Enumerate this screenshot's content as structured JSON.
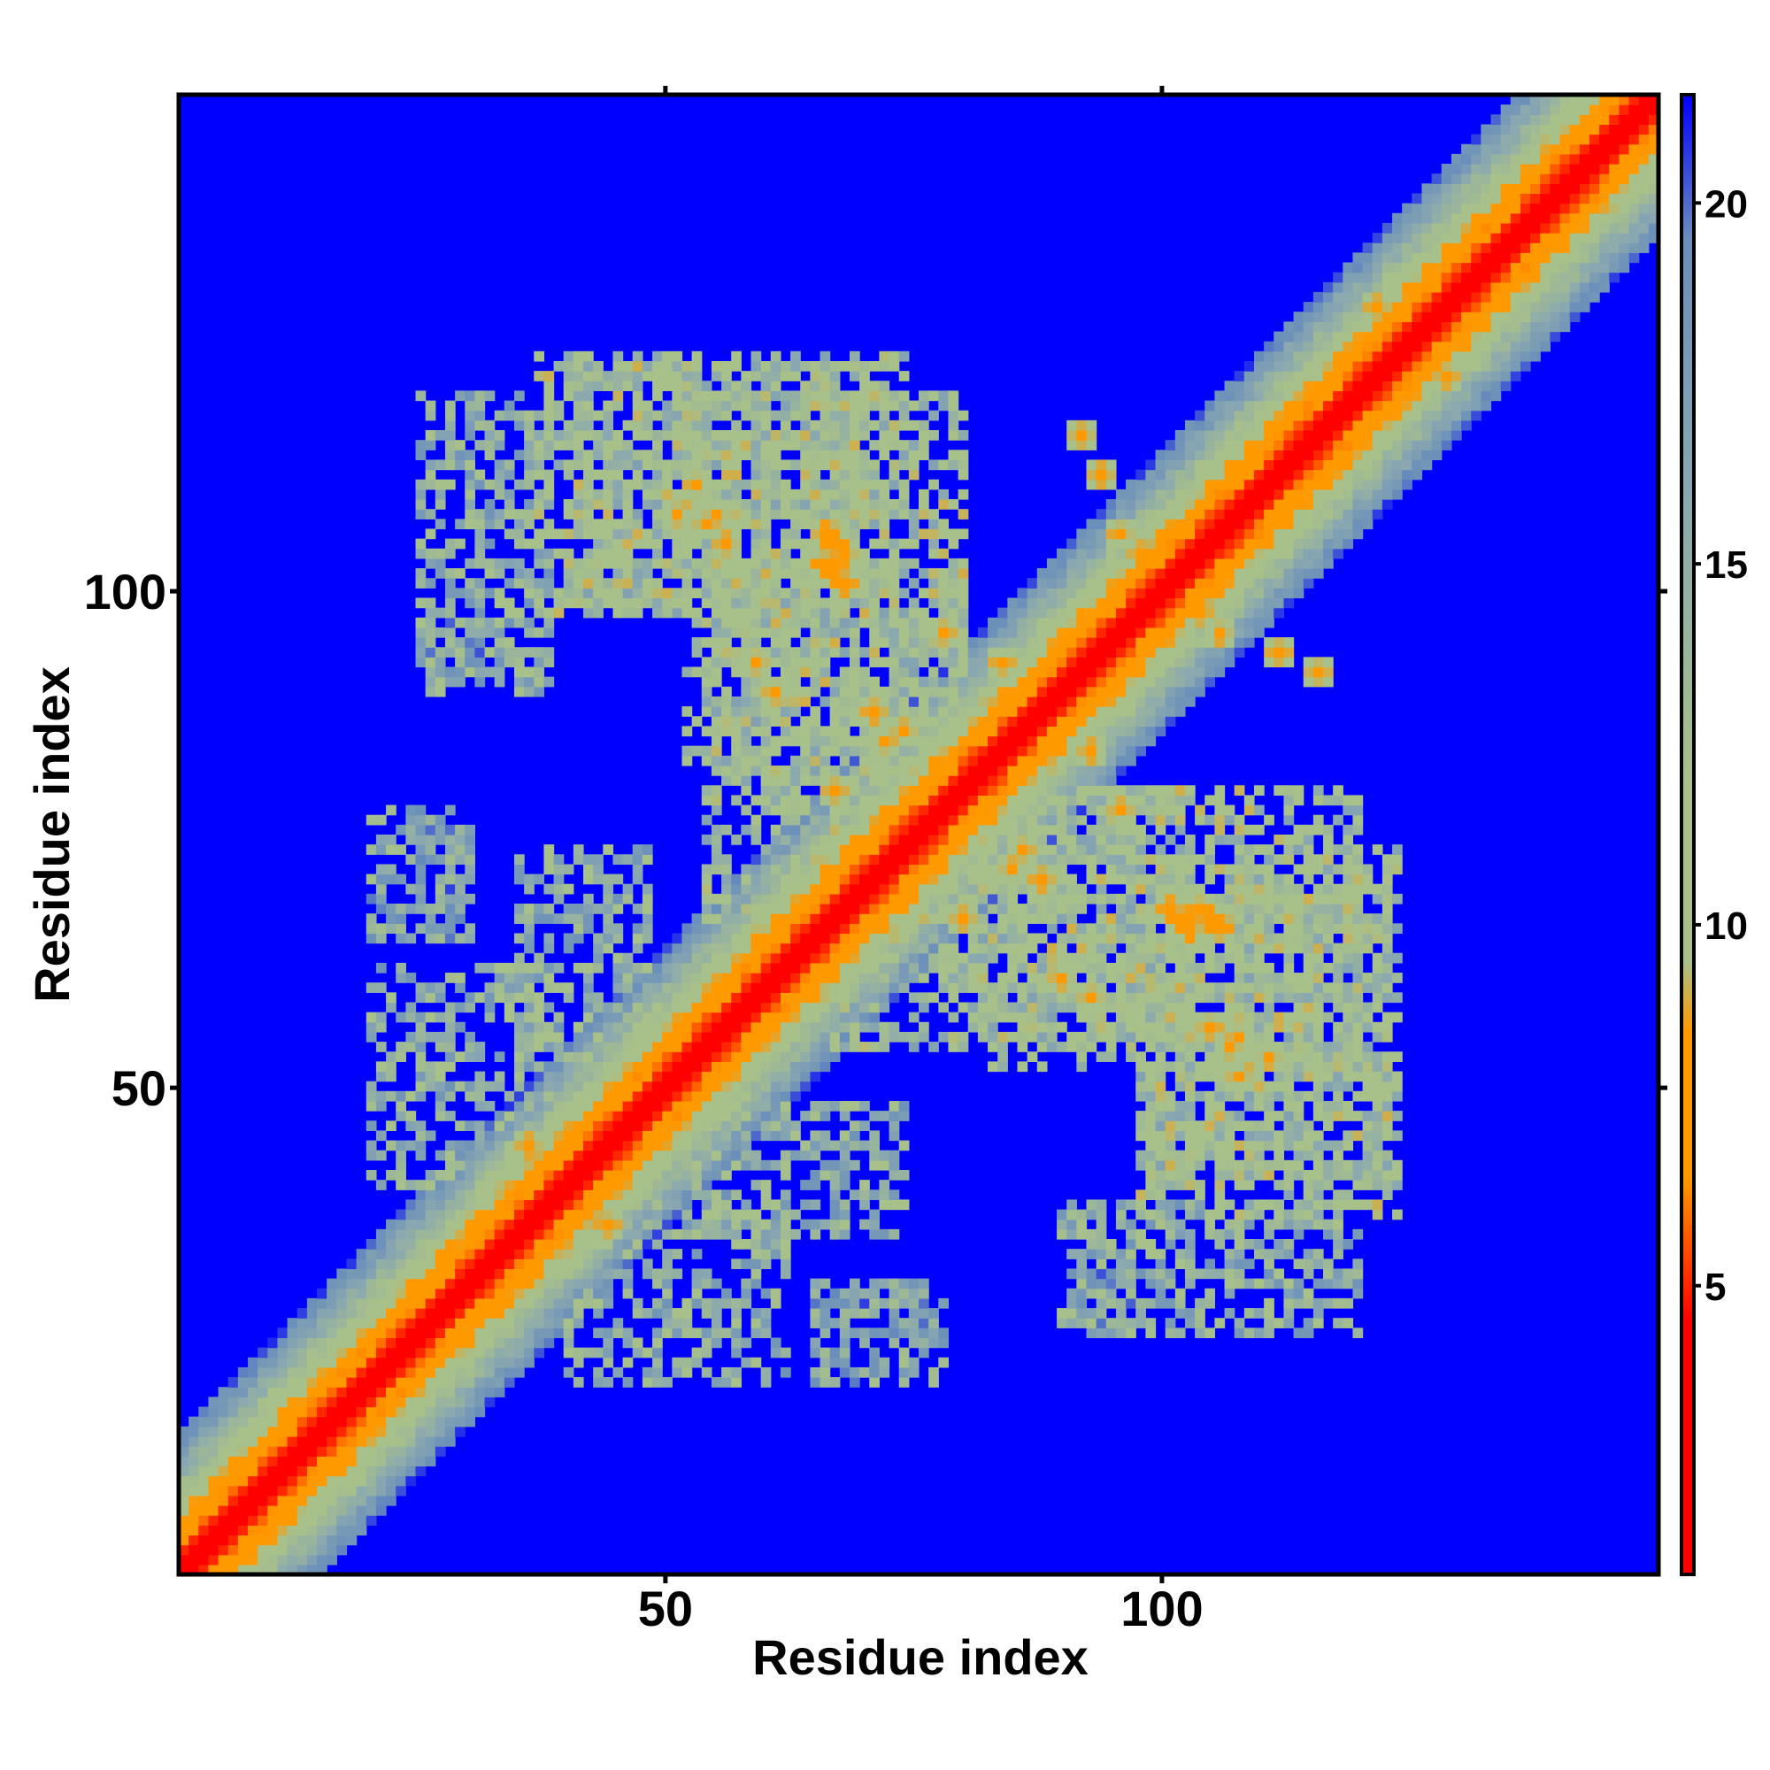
{
  "chart_data": {
    "type": "heatmap",
    "title": "",
    "xlabel": "Residue index",
    "ylabel": "Residue index",
    "n_residues": 150,
    "xlim": [
      1,
      150
    ],
    "ylim": [
      1,
      150
    ],
    "x_ticks": [
      50,
      100
    ],
    "y_ticks": [
      50,
      100
    ],
    "x_tick_labels": [
      "50",
      "100"
    ],
    "y_tick_labels": [
      "50",
      "100"
    ],
    "grid": false,
    "legend": "colorbar-right",
    "colorbar": {
      "range": [
        1,
        21.5
      ],
      "ticks": [
        5,
        10,
        15,
        20
      ],
      "tick_labels": [
        "5",
        "10",
        "15",
        "20"
      ],
      "colors": {
        "high": "#0000ff",
        "upper": "#6a8fba",
        "mid": "#a8c08a",
        "low_mid": "#ff9900",
        "low": "#ff0000"
      },
      "stops": [
        {
          "value": 1,
          "color": "#ff0000"
        },
        {
          "value": 4.5,
          "color": "#ff0000"
        },
        {
          "value": 6.5,
          "color": "#ff9900"
        },
        {
          "value": 8.5,
          "color": "#ff9900"
        },
        {
          "value": 9.5,
          "color": "#a8c08a"
        },
        {
          "value": 12,
          "color": "#a8c08a"
        },
        {
          "value": 16,
          "color": "#8aa8b0"
        },
        {
          "value": 19.5,
          "color": "#6a8fba"
        },
        {
          "value": 21.5,
          "color": "#0000ff"
        }
      ]
    },
    "matrix_cutoff": 21.5,
    "contact_regions": [
      {
        "x": [
          37,
          74
        ],
        "y": [
          98,
          124
        ],
        "value": 13
      },
      {
        "x": [
          54,
          80
        ],
        "y": [
          67,
          102
        ],
        "value": 13
      },
      {
        "x": [
          82,
          120
        ],
        "y": [
          52,
          80
        ],
        "value": 13
      },
      {
        "x": [
          99,
          123
        ],
        "y": [
          40,
          70
        ],
        "value": 13
      },
      {
        "x": [
          53,
          74
        ],
        "y": [
          35,
          48
        ],
        "value": 15
      },
      {
        "x": [
          90,
          120
        ],
        "y": [
          25,
          38
        ],
        "value": 15
      },
      {
        "x": [
          20,
          38
        ],
        "y": [
          40,
          62
        ],
        "value": 15
      },
      {
        "x": [
          20,
          30
        ],
        "y": [
          65,
          78
        ],
        "value": 16
      },
      {
        "x": [
          68,
          75
        ],
        "y": [
          24,
          30
        ],
        "value": 17
      },
      {
        "x": [
          92,
          97
        ],
        "y": [
          26,
          33
        ],
        "value": 17
      }
    ],
    "contact_hotspots": [
      {
        "x": 66,
        "y": 103,
        "value": 6.5
      },
      {
        "x": 67,
        "y": 102,
        "value": 6.5
      },
      {
        "x": 68,
        "y": 101,
        "value": 6.5
      },
      {
        "x": 51,
        "y": 108,
        "value": 7
      },
      {
        "x": 54,
        "y": 107,
        "value": 7
      },
      {
        "x": 56,
        "y": 105,
        "value": 7
      },
      {
        "x": 59,
        "y": 93,
        "value": 7
      },
      {
        "x": 61,
        "y": 90,
        "value": 7
      },
      {
        "x": 71,
        "y": 88,
        "value": 7
      },
      {
        "x": 74,
        "y": 86,
        "value": 7
      },
      {
        "x": 93,
        "y": 84,
        "value": 7
      },
      {
        "x": 96,
        "y": 78,
        "value": 7
      },
      {
        "x": 104,
        "y": 68,
        "value": 6.5
      },
      {
        "x": 105,
        "y": 67,
        "value": 6.5
      },
      {
        "x": 106,
        "y": 66,
        "value": 6.5
      },
      {
        "x": 108,
        "y": 55,
        "value": 7
      },
      {
        "x": 111,
        "y": 53,
        "value": 7
      },
      {
        "x": 112,
        "y": 94,
        "value": 7
      },
      {
        "x": 116,
        "y": 92,
        "value": 7
      },
      {
        "x": 85,
        "y": 72,
        "value": 7
      },
      {
        "x": 72,
        "y": 74,
        "value": 7
      },
      {
        "x": 80,
        "y": 67,
        "value": 7
      },
      {
        "x": 34,
        "y": 39,
        "value": 7
      },
      {
        "x": 40,
        "y": 38,
        "value": 7
      },
      {
        "x": 36,
        "y": 44,
        "value": 7
      },
      {
        "x": 98,
        "y": 104,
        "value": 7
      },
      {
        "x": 95,
        "y": 98,
        "value": 7
      },
      {
        "x": 106,
        "y": 96,
        "value": 7
      },
      {
        "x": 122,
        "y": 129,
        "value": 7
      },
      {
        "x": 129,
        "y": 125,
        "value": 7
      }
    ]
  }
}
